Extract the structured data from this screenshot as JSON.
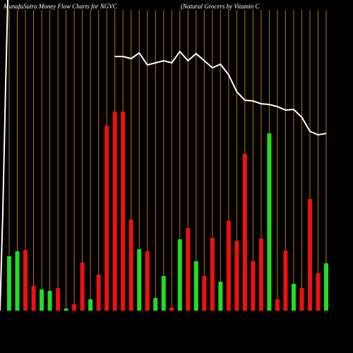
{
  "chart_data": {
    "type": "bar",
    "title": "MunafaSutra  Money Flow  Charts for NGVC",
    "subtitle": "(Natural Grocers by Vitamin  C",
    "categories": [
      null,
      null,
      null,
      null,
      null,
      null,
      null,
      null,
      null,
      null,
      null,
      null,
      null,
      null,
      null,
      null,
      null,
      null,
      null,
      null,
      null,
      null,
      null,
      null,
      null,
      null,
      null,
      null,
      null,
      null,
      null,
      null,
      null,
      null,
      null,
      null,
      null,
      null,
      null,
      null
    ],
    "values": [
      77,
      84,
      86,
      35,
      30,
      28,
      32,
      3,
      9,
      68,
      16,
      51,
      262,
      282,
      282,
      129,
      87,
      84,
      18,
      49,
      4,
      101,
      117,
      70,
      49,
      103,
      41,
      127,
      99,
      222,
      70,
      102,
      251,
      16,
      85,
      38,
      32,
      158,
      53,
      67
    ],
    "colors": [
      "#22dd22",
      "#22dd22",
      "#ee1111",
      "#ee1111",
      "#22dd22",
      "#22dd22",
      "#ee1111",
      "#22dd22",
      "#ee1111",
      "#ee1111",
      "#22dd22",
      "#ee1111",
      "#ee1111",
      "#ee1111",
      "#ee1111",
      "#ee1111",
      "#22dd22",
      "#ee1111",
      "#22dd22",
      "#22dd22",
      "#ee1111",
      "#22dd22",
      "#ee1111",
      "#22dd22",
      "#ee1111",
      "#ee1111",
      "#22dd22",
      "#ee1111",
      "#ee1111",
      "#ee1111",
      "#ee1111",
      "#ee1111",
      "#22dd22",
      "#ee1111",
      "#ee1111",
      "#22dd22",
      "#ee1111",
      "#ee1111",
      "#ee1111",
      "#22dd22"
    ],
    "ylim": [
      0,
      300
    ],
    "line": {
      "color": "#ffffff",
      "axis": "y2",
      "values": [
        null,
        null,
        null,
        null,
        null,
        null,
        null,
        null,
        null,
        null,
        null,
        null,
        null,
        360,
        360,
        357,
        365,
        348,
        351,
        354,
        351,
        367,
        354,
        364,
        354,
        344,
        349,
        334,
        310,
        298,
        297,
        293,
        292,
        289,
        284,
        285,
        274,
        254,
        249,
        251
      ]
    },
    "y2lim": [
      0,
      440
    ],
    "divider_color": "#b8741a"
  }
}
